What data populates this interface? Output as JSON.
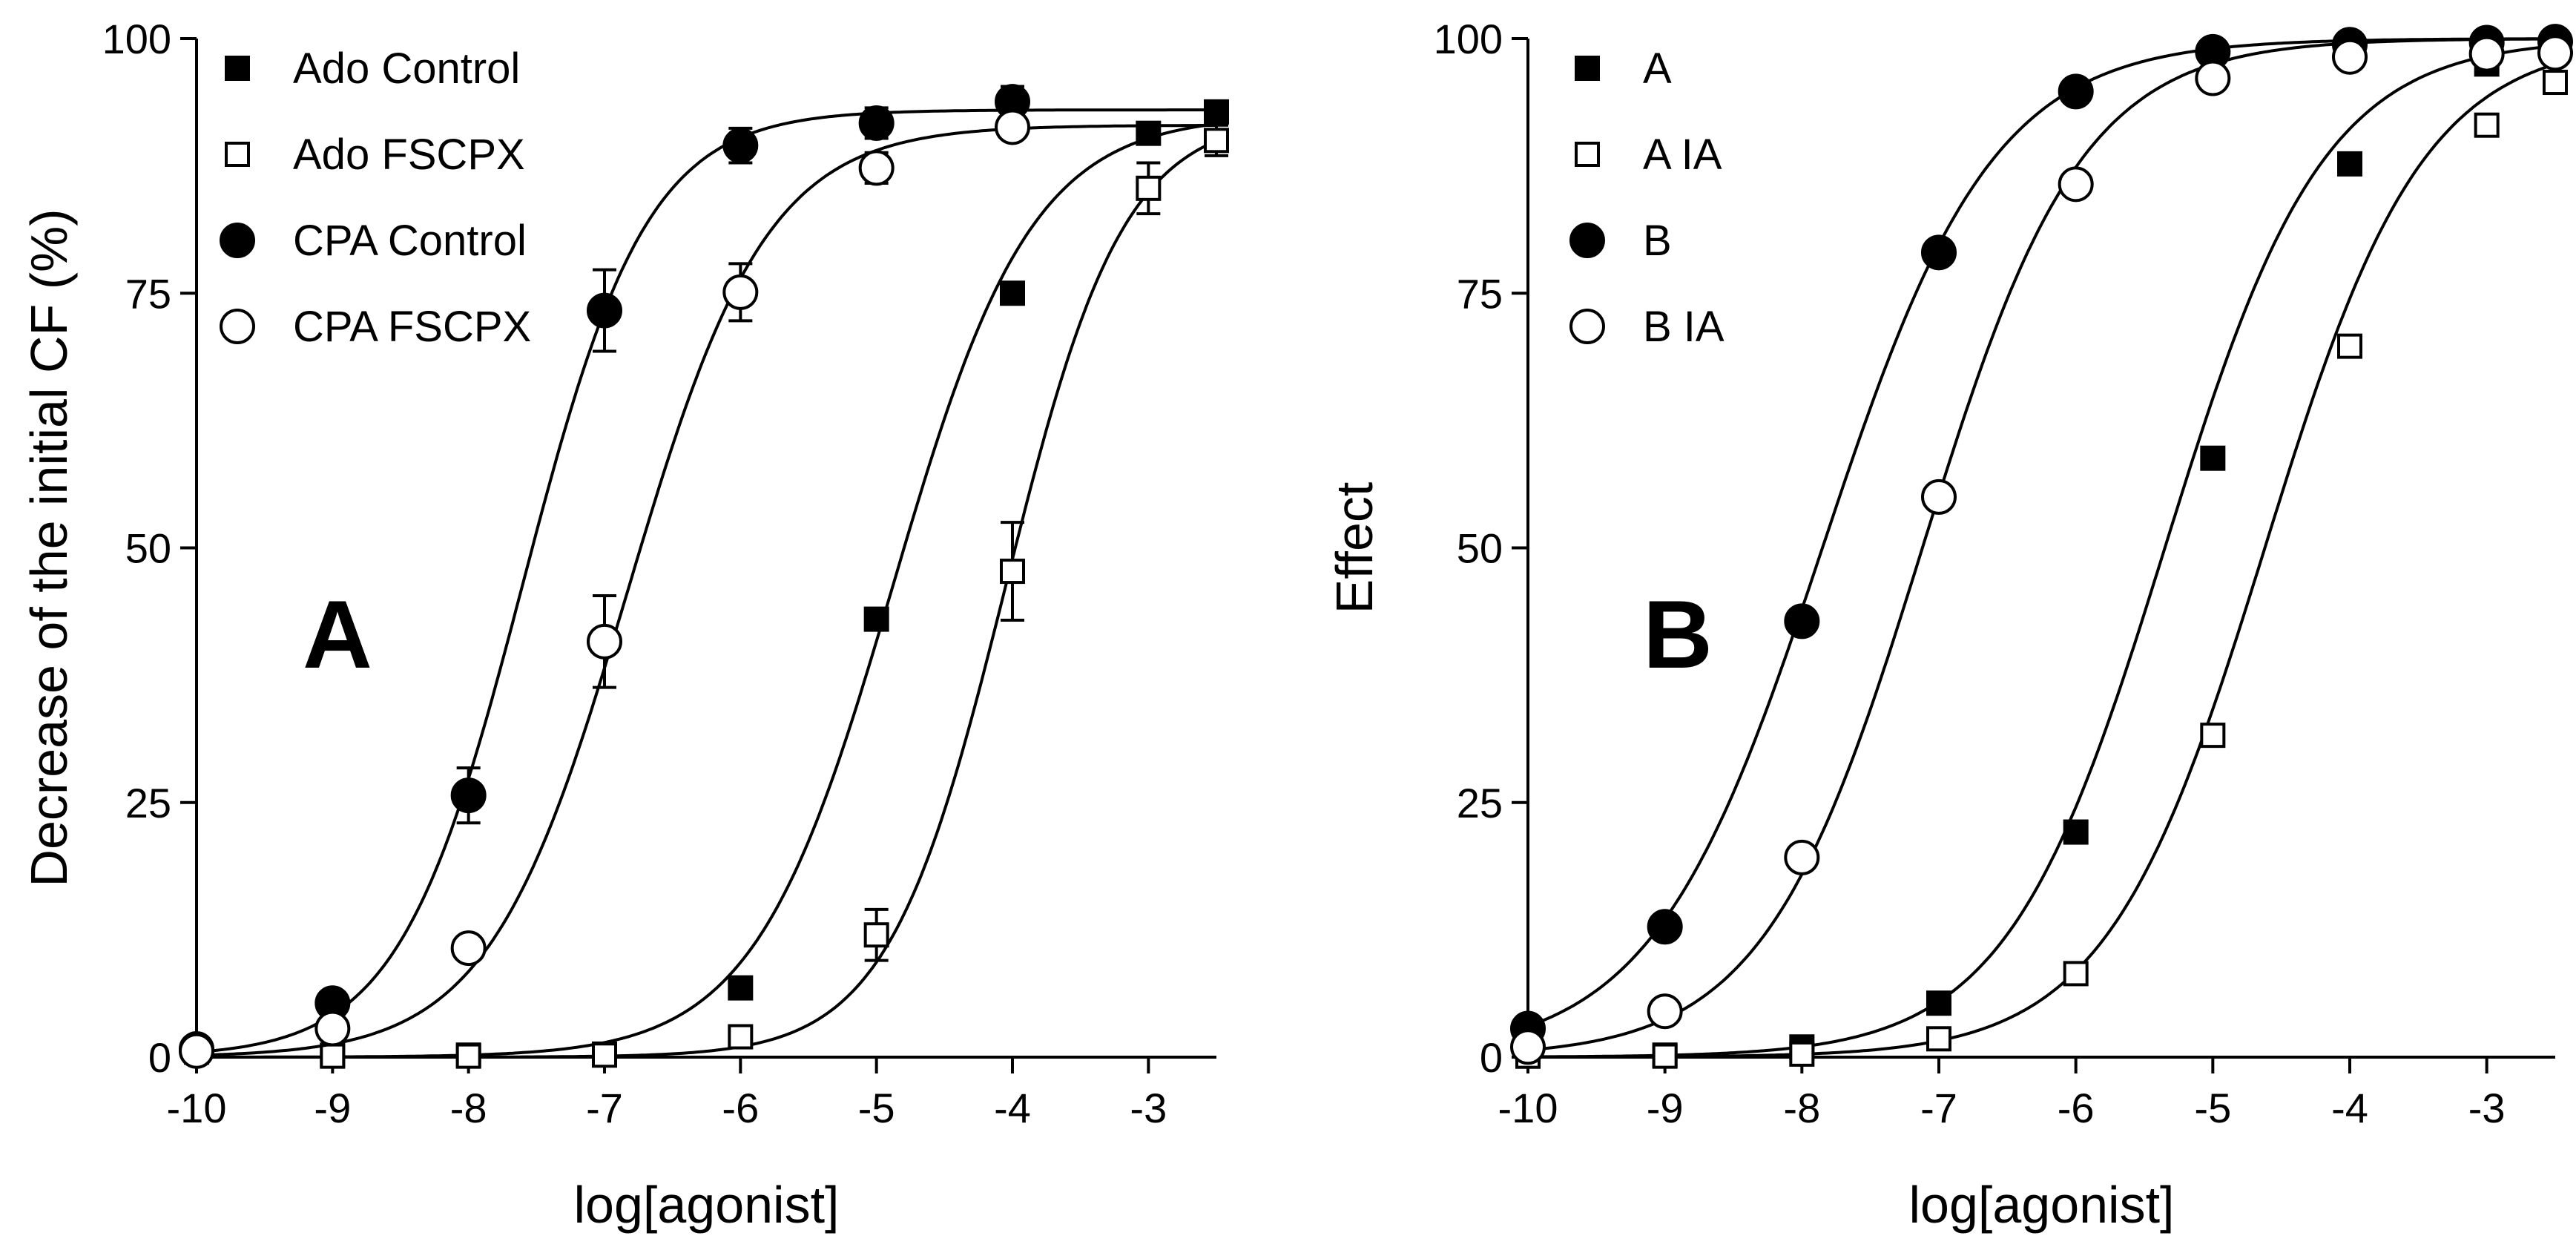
{
  "chart_data": [
    {
      "type": "line",
      "panel_letter": "A",
      "xlabel": "log[agonist]",
      "ylabel": "Decrease of the initial CF (%)",
      "xlim": [
        -10,
        -2.5
      ],
      "ylim": [
        0,
        100
      ],
      "x_ticks": [
        -10,
        -9,
        -8,
        -7,
        -6,
        -5,
        -4,
        -3
      ],
      "x_tick_labels": [
        "-10",
        "-9",
        "-8",
        "-7",
        "-6",
        "-5",
        "-4",
        "-3"
      ],
      "y_ticks": [
        0,
        25,
        50,
        75,
        100
      ],
      "y_tick_labels": [
        "0",
        "25",
        "50",
        "75",
        "100"
      ],
      "grid": false,
      "legend_position": "top-left",
      "series": [
        {
          "name": "Ado Control",
          "marker": "square",
          "filled": true,
          "x": [
            -10,
            -9,
            -8,
            -7,
            -6,
            -5,
            -4,
            -3,
            -2.5
          ],
          "y": [
            0.5,
            0.2,
            0.2,
            0.3,
            6.8,
            43,
            75,
            90.7,
            92.8
          ],
          "err": [
            0,
            0,
            0,
            0,
            0,
            0,
            0,
            0,
            0
          ],
          "fit": {
            "bottom": 0,
            "top": 92.5,
            "logec50": -4.88,
            "hill": 0.85
          }
        },
        {
          "name": "Ado FSCPX",
          "marker": "square",
          "filled": false,
          "x": [
            -10,
            -9,
            -8,
            -7,
            -6,
            -5,
            -4,
            -3,
            -2.5
          ],
          "y": [
            0.5,
            0.1,
            0.1,
            0.2,
            2,
            12,
            47.7,
            85.3,
            90
          ],
          "err": [
            0,
            0,
            0,
            0,
            0,
            2.5,
            4.8,
            2.5,
            1.5
          ],
          "fit": {
            "bottom": 0,
            "top": 92.5,
            "logec50": -4.05,
            "hill": 1.0
          }
        },
        {
          "name": "CPA Control",
          "marker": "circle",
          "filled": true,
          "x": [
            -10,
            -9,
            -8,
            -7,
            -6,
            -5,
            -4
          ],
          "y": [
            0.8,
            5.3,
            25.7,
            73.3,
            89.5,
            91.7,
            93.8
          ],
          "err": [
            0,
            0,
            2.7,
            4,
            1.7,
            1.5,
            1.5
          ],
          "fit": {
            "bottom": 0,
            "top": 93,
            "logec50": -7.6,
            "hill": 0.95
          }
        },
        {
          "name": "CPA FSCPX",
          "marker": "circle",
          "filled": false,
          "x": [
            -10,
            -9,
            -8,
            -7,
            -6,
            -5,
            -4
          ],
          "y": [
            0.6,
            2.8,
            10.7,
            40.8,
            75.1,
            87.3,
            91.3
          ],
          "err": [
            0,
            0,
            0,
            4.5,
            2.8,
            1.5,
            0
          ],
          "fit": {
            "bottom": 0,
            "top": 91.5,
            "logec50": -6.83,
            "hill": 0.85
          }
        }
      ]
    },
    {
      "type": "line",
      "panel_letter": "B",
      "xlabel": "log[agonist]",
      "ylabel": "Effect",
      "xlim": [
        -10,
        -2.5
      ],
      "ylim": [
        0,
        100
      ],
      "x_ticks": [
        -10,
        -9,
        -8,
        -7,
        -6,
        -5,
        -4,
        -3
      ],
      "x_tick_labels": [
        "-10",
        "-9",
        "-8",
        "-7",
        "-6",
        "-5",
        "-4",
        "-3"
      ],
      "y_ticks": [
        0,
        25,
        50,
        75,
        100
      ],
      "y_tick_labels": [
        "0",
        "25",
        "50",
        "75",
        "100"
      ],
      "grid": false,
      "legend_position": "top-left",
      "series": [
        {
          "name": "A",
          "marker": "square",
          "filled": true,
          "x": [
            -10,
            -9,
            -8,
            -7,
            -6,
            -5,
            -4,
            -3,
            -2.5
          ],
          "y": [
            0.1,
            0.2,
            1,
            5.3,
            22.1,
            58.8,
            87.7,
            97.5,
            99
          ],
          "err": [
            0,
            0,
            0,
            0,
            0,
            0,
            0,
            0,
            0
          ],
          "fit": {
            "bottom": 0,
            "top": 100,
            "logec50": -5.35,
            "hill": 0.75
          }
        },
        {
          "name": "A  IA",
          "marker": "square",
          "filled": false,
          "x": [
            -10,
            -9,
            -8,
            -7,
            -6,
            -5,
            -4,
            -3,
            -2.5
          ],
          "y": [
            0.1,
            0.1,
            0.3,
            1.8,
            8.2,
            31.6,
            69.8,
            91.5,
            95.7
          ],
          "err": [
            0,
            0,
            0,
            0,
            0,
            0,
            0,
            0,
            0
          ],
          "fit": {
            "bottom": 0,
            "top": 100,
            "logec50": -4.62,
            "hill": 0.75
          }
        },
        {
          "name": "B",
          "marker": "circle",
          "filled": true,
          "x": [
            -10,
            -9,
            -8,
            -7,
            -6,
            -5,
            -4,
            -3,
            -2.5
          ],
          "y": [
            2.8,
            12.8,
            42.8,
            79,
            94.8,
            98.7,
            99.4,
            99.6,
            99.7
          ],
          "err": [
            0,
            0,
            0,
            0,
            0,
            0,
            0,
            0,
            0
          ],
          "fit": {
            "bottom": 0,
            "top": 100,
            "logec50": -7.85,
            "hill": 0.7
          }
        },
        {
          "name": "B  IA",
          "marker": "circle",
          "filled": false,
          "x": [
            -10,
            -9,
            -8,
            -7,
            -6,
            -5,
            -4,
            -3,
            -2.5
          ],
          "y": [
            1,
            4.5,
            19.6,
            55,
            85.7,
            96.1,
            98.2,
            98.5,
            98.6
          ],
          "err": [
            0,
            0,
            0,
            0,
            0,
            0,
            0,
            0,
            0
          ],
          "fit": {
            "bottom": 0,
            "top": 100,
            "logec50": -7.12,
            "hill": 0.75
          }
        }
      ]
    }
  ]
}
